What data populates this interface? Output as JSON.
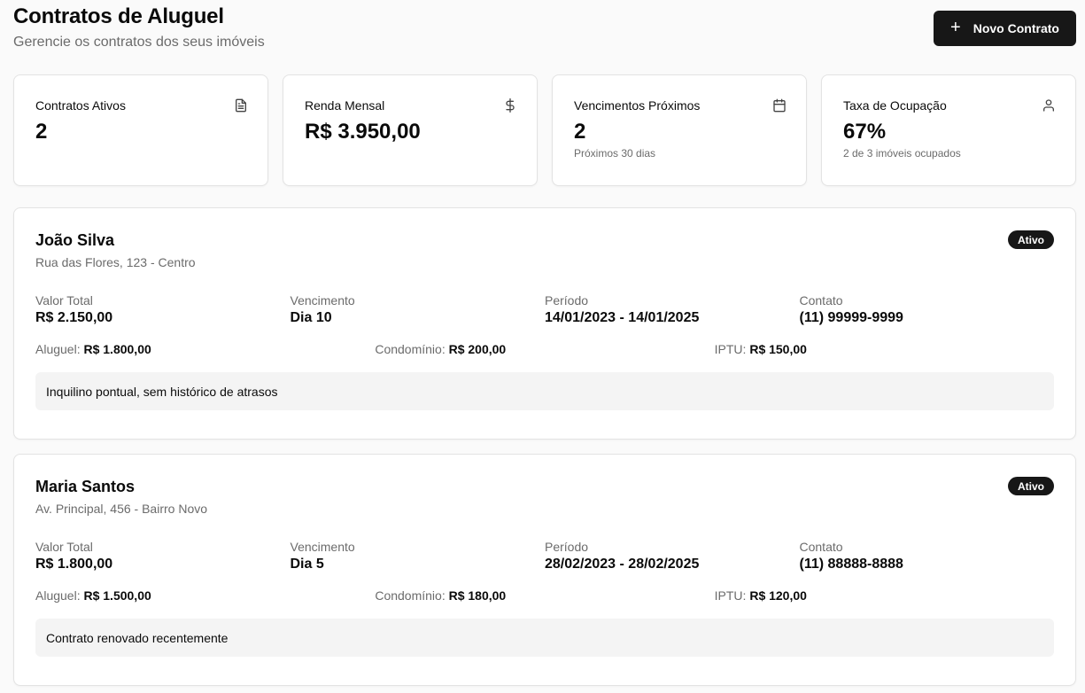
{
  "header": {
    "title": "Contratos de Aluguel",
    "subtitle": "Gerencie os contratos dos seus imóveis",
    "new_button_icon": "plus-icon",
    "new_button_label": "Novo Contrato"
  },
  "stats": [
    {
      "label": "Contratos Ativos",
      "value": "2",
      "sub": "",
      "icon": "file-text-icon"
    },
    {
      "label": "Renda Mensal",
      "value": "R$ 3.950,00",
      "sub": "",
      "icon": "dollar-icon"
    },
    {
      "label": "Vencimentos Próximos",
      "value": "2",
      "sub": "Próximos 30 dias",
      "icon": "calendar-icon"
    },
    {
      "label": "Taxa de Ocupação",
      "value": "67%",
      "sub": "2 de 3 imóveis ocupados",
      "icon": "user-icon"
    }
  ],
  "contracts": [
    {
      "tenant": "João Silva",
      "address": "Rua das Flores, 123 - Centro",
      "status": "Ativo",
      "fields": [
        {
          "label": "Valor Total",
          "value": "R$ 2.150,00"
        },
        {
          "label": "Vencimento",
          "value": "Dia 10"
        },
        {
          "label": "Período",
          "value": "14/01/2023 - 14/01/2025"
        },
        {
          "label": "Contato",
          "value": "(11) 99999-9999"
        }
      ],
      "breakdown": [
        {
          "label": "Aluguel:",
          "value": "R$ 1.800,00"
        },
        {
          "label": "Condomínio:",
          "value": "R$ 200,00"
        },
        {
          "label": "IPTU:",
          "value": "R$ 150,00"
        }
      ],
      "note": "Inquilino pontual, sem histórico de atrasos"
    },
    {
      "tenant": "Maria Santos",
      "address": "Av. Principal, 456 - Bairro Novo",
      "status": "Ativo",
      "fields": [
        {
          "label": "Valor Total",
          "value": "R$ 1.800,00"
        },
        {
          "label": "Vencimento",
          "value": "Dia 5"
        },
        {
          "label": "Período",
          "value": "28/02/2023 - 28/02/2025"
        },
        {
          "label": "Contato",
          "value": "(11) 88888-8888"
        }
      ],
      "breakdown": [
        {
          "label": "Aluguel:",
          "value": "R$ 1.500,00"
        },
        {
          "label": "Condomínio:",
          "value": "R$ 180,00"
        },
        {
          "label": "IPTU:",
          "value": "R$ 120,00"
        }
      ],
      "note": "Contrato renovado recentemente"
    }
  ]
}
